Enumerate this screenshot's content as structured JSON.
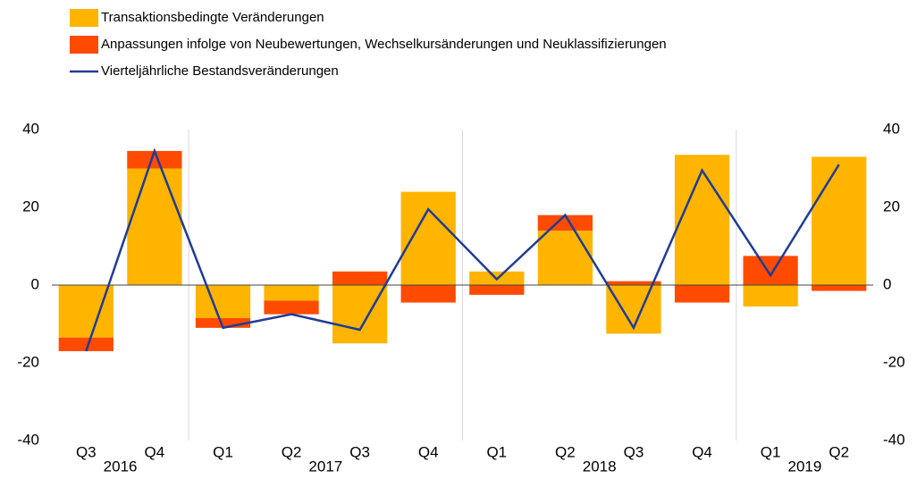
{
  "chart_data": {
    "type": "bar",
    "stacked": true,
    "categories": [
      "Q3",
      "Q4",
      "Q1",
      "Q2",
      "Q3",
      "Q4",
      "Q1",
      "Q2",
      "Q3",
      "Q4",
      "Q1",
      "Q2"
    ],
    "years": [
      "2016",
      "2017",
      "2018",
      "2019"
    ],
    "series": [
      {
        "name": "Transaktionsbedingte Veränderungen",
        "color": "#ffb400",
        "values": [
          -13.5,
          30,
          -8.5,
          -4,
          -15,
          24,
          3.5,
          14,
          -12.5,
          33.5,
          -5.5,
          33
        ]
      },
      {
        "name": "Anpassungen infolge von Neubewertungen, Wechselkursänderungen und Neuklassifizierungen",
        "color": "#ff4b00",
        "values": [
          -3.5,
          4.5,
          -2.5,
          -3.5,
          3.5,
          -4.5,
          -2.5,
          4,
          1,
          -4.5,
          7.5,
          -1.5
        ]
      },
      {
        "name": "Vierteljährliche Bestandsveränderungen",
        "color": "#1f3c96",
        "type": "line",
        "axis": "y2",
        "values": [
          -17,
          34.5,
          -11,
          -7.5,
          -11.5,
          19.5,
          1.5,
          18,
          -11,
          29.5,
          2.5,
          31
        ]
      }
    ],
    "ylim": [
      -40,
      40
    ],
    "yticks": [
      -40,
      -20,
      0,
      20,
      40
    ],
    "y2lim": [
      -40,
      40
    ],
    "y2ticks": [
      -40,
      -20,
      0,
      20,
      40
    ],
    "grid": false,
    "legend": "top-left"
  }
}
